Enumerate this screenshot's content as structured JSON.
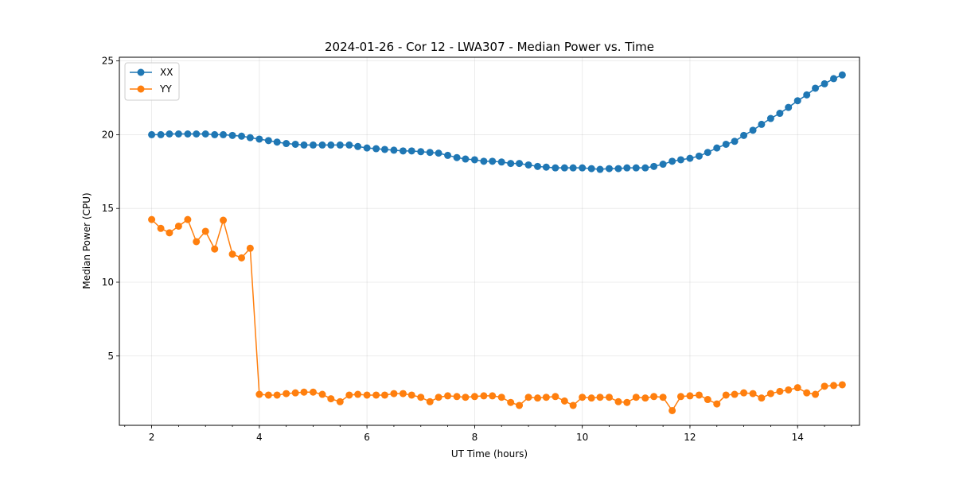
{
  "chart_data": {
    "type": "line",
    "title": "2024-01-26 - Cor 12 - LWA307 - Median Power vs. Time",
    "xlabel": "UT Time (hours)",
    "ylabel": "Median Power (CPU)",
    "xlim": [
      1.4,
      15.15
    ],
    "ylim": [
      0.3,
      25.25
    ],
    "xticks": [
      2,
      4,
      6,
      8,
      10,
      12,
      14
    ],
    "yticks": [
      5,
      10,
      15,
      20,
      25
    ],
    "grid": true,
    "legend_position": "upper-left",
    "series": [
      {
        "name": "XX",
        "color": "#1f77b4",
        "x": [
          2.0,
          2.17,
          2.33,
          2.5,
          2.67,
          2.83,
          3.0,
          3.17,
          3.33,
          3.5,
          3.67,
          3.83,
          4.0,
          4.17,
          4.33,
          4.5,
          4.67,
          4.83,
          5.0,
          5.17,
          5.33,
          5.5,
          5.67,
          5.83,
          6.0,
          6.17,
          6.33,
          6.5,
          6.67,
          6.83,
          7.0,
          7.17,
          7.33,
          7.5,
          7.67,
          7.83,
          8.0,
          8.17,
          8.33,
          8.5,
          8.67,
          8.83,
          9.0,
          9.17,
          9.33,
          9.5,
          9.67,
          9.83,
          10.0,
          10.17,
          10.33,
          10.5,
          10.67,
          10.83,
          11.0,
          11.17,
          11.33,
          11.5,
          11.67,
          11.83,
          12.0,
          12.17,
          12.33,
          12.5,
          12.67,
          12.83,
          13.0,
          13.17,
          13.33,
          13.5,
          13.67,
          13.83,
          14.0,
          14.17,
          14.33,
          14.5,
          14.67,
          14.83
        ],
        "y": [
          20.0,
          20.0,
          20.05,
          20.05,
          20.05,
          20.05,
          20.05,
          20.0,
          20.0,
          19.95,
          19.9,
          19.8,
          19.7,
          19.6,
          19.5,
          19.4,
          19.35,
          19.3,
          19.3,
          19.3,
          19.3,
          19.3,
          19.3,
          19.2,
          19.1,
          19.05,
          19.0,
          18.95,
          18.9,
          18.9,
          18.85,
          18.8,
          18.75,
          18.6,
          18.45,
          18.35,
          18.3,
          18.2,
          18.2,
          18.15,
          18.05,
          18.05,
          17.95,
          17.85,
          17.8,
          17.75,
          17.75,
          17.75,
          17.75,
          17.7,
          17.65,
          17.7,
          17.7,
          17.75,
          17.75,
          17.75,
          17.85,
          18.0,
          18.2,
          18.3,
          18.4,
          18.55,
          18.8,
          19.1,
          19.35,
          19.55,
          19.95,
          20.3,
          20.7,
          21.1,
          21.45,
          21.85,
          22.3,
          22.7,
          23.15,
          23.45,
          23.8,
          24.05
        ]
      },
      {
        "name": "YY",
        "color": "#ff7f0e",
        "x": [
          2.0,
          2.17,
          2.33,
          2.5,
          2.67,
          2.83,
          3.0,
          3.17,
          3.33,
          3.5,
          3.67,
          3.83,
          4.0,
          4.17,
          4.33,
          4.5,
          4.67,
          4.83,
          5.0,
          5.17,
          5.33,
          5.5,
          5.67,
          5.83,
          6.0,
          6.17,
          6.33,
          6.5,
          6.67,
          6.83,
          7.0,
          7.17,
          7.33,
          7.5,
          7.67,
          7.83,
          8.0,
          8.17,
          8.33,
          8.5,
          8.67,
          8.83,
          9.0,
          9.17,
          9.33,
          9.5,
          9.67,
          9.83,
          10.0,
          10.17,
          10.33,
          10.5,
          10.67,
          10.83,
          11.0,
          11.17,
          11.33,
          11.5,
          11.67,
          11.83,
          12.0,
          12.17,
          12.33,
          12.5,
          12.67,
          12.83,
          13.0,
          13.17,
          13.33,
          13.5,
          13.67,
          13.83,
          14.0,
          14.17,
          14.33,
          14.5,
          14.67,
          14.83
        ],
        "y": [
          14.25,
          13.65,
          13.35,
          13.8,
          14.25,
          12.75,
          13.45,
          12.25,
          14.2,
          11.9,
          11.65,
          12.3,
          2.4,
          2.35,
          2.35,
          2.45,
          2.5,
          2.55,
          2.55,
          2.4,
          2.1,
          1.9,
          2.35,
          2.4,
          2.35,
          2.35,
          2.35,
          2.45,
          2.45,
          2.35,
          2.2,
          1.9,
          2.2,
          2.3,
          2.25,
          2.2,
          2.25,
          2.3,
          2.3,
          2.2,
          1.85,
          1.65,
          2.2,
          2.15,
          2.2,
          2.25,
          1.95,
          1.65,
          2.2,
          2.15,
          2.2,
          2.2,
          1.9,
          1.85,
          2.2,
          2.15,
          2.25,
          2.2,
          1.3,
          2.25,
          2.3,
          2.35,
          2.05,
          1.75,
          2.35,
          2.4,
          2.5,
          2.45,
          2.15,
          2.45,
          2.6,
          2.7,
          2.85,
          2.5,
          2.4,
          2.95,
          3.0,
          3.05
        ]
      }
    ]
  }
}
